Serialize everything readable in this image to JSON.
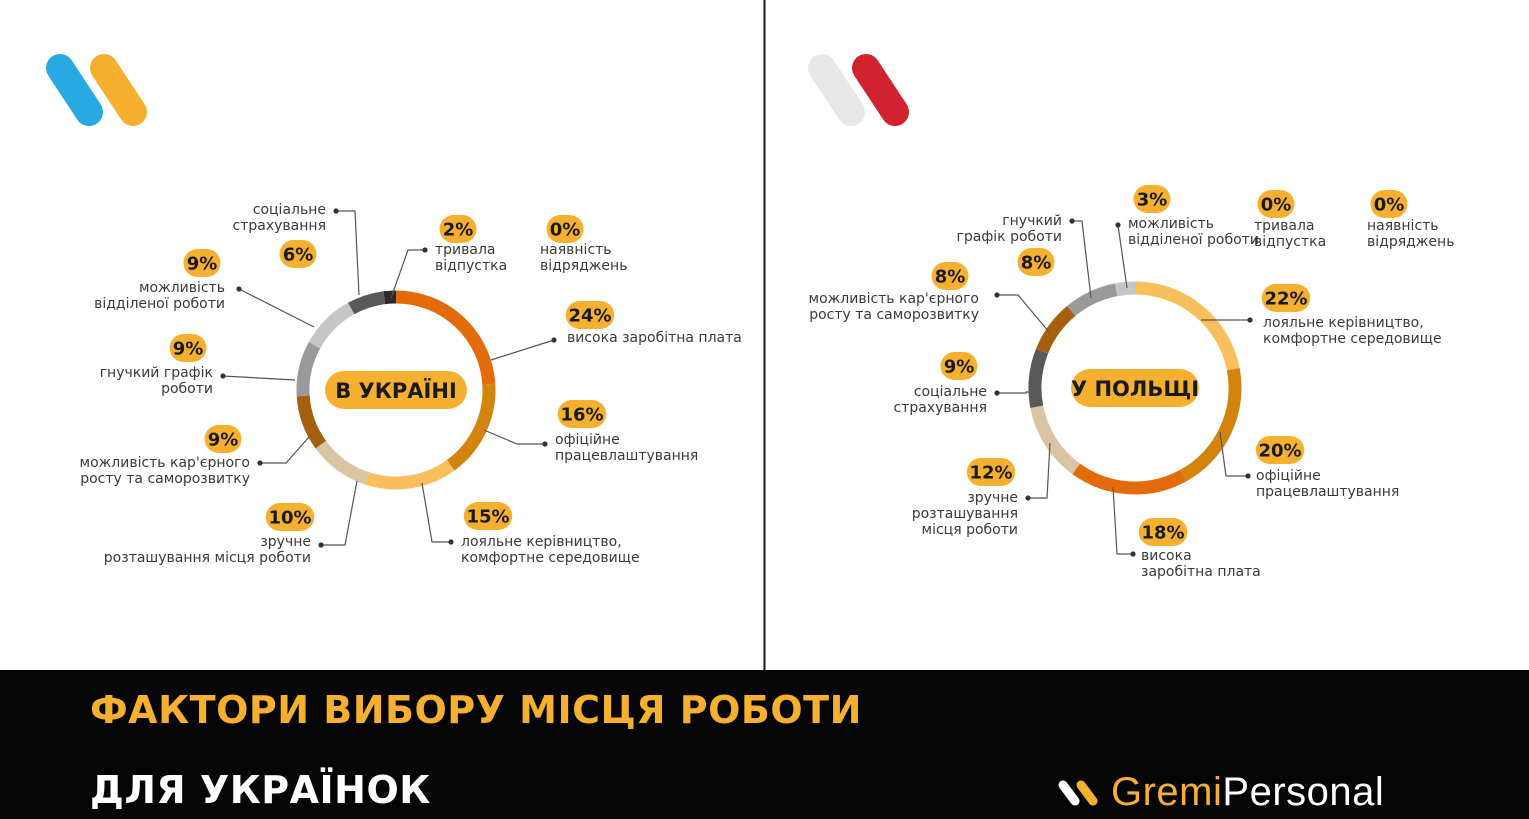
{
  "colors": {
    "accent_yellow": "#f6b030",
    "logo_blue": "#28a9e2",
    "logo_grey": "#e8e8e8",
    "logo_red": "#d0232f",
    "footer_bg": "#050505"
  },
  "chart_data": [
    {
      "type": "pie",
      "center_label": "В УКРАЇНІ",
      "slices": [
        {
          "label": "висока заробітна плата",
          "value": 24,
          "pct_text": "24%",
          "color": "#e36b0c"
        },
        {
          "label": "офіційне працевлаштування",
          "value": 16,
          "pct_text": "16%",
          "color": "#d2840f"
        },
        {
          "label": "лояльне керівництво, комфортне середовище",
          "value": 15,
          "pct_text": "15%",
          "color": "#f9bf5c"
        },
        {
          "label": "зручне розташування місця роботи",
          "value": 10,
          "pct_text": "10%",
          "color": "#d9c4a3"
        },
        {
          "label": "можливість кар'єрного росту та саморозвитку",
          "value": 9,
          "pct_text": "9%",
          "color": "#a5600f"
        },
        {
          "label": "гнучкий графік роботи",
          "value": 9,
          "pct_text": "9%",
          "color": "#9a9a9a"
        },
        {
          "label": "можливість відділеної роботи",
          "value": 9,
          "pct_text": "9%",
          "color": "#c6c6c4"
        },
        {
          "label": "соціальне страхування",
          "value": 6,
          "pct_text": "6%",
          "color": "#595959"
        },
        {
          "label": "тривала відпустка",
          "value": 2,
          "pct_text": "2%",
          "color": "#2b2b2b"
        },
        {
          "label": "наявність відряджень",
          "value": 0,
          "pct_text": "0%",
          "color": "#2b2b2b"
        }
      ]
    },
    {
      "type": "pie",
      "center_label": "У ПОЛЬЩІ",
      "slices": [
        {
          "label": "лояльне керівництво, комфортне середовище",
          "value": 22,
          "pct_text": "22%",
          "color": "#f9bf5c"
        },
        {
          "label": "офіційне працевлаштування",
          "value": 20,
          "pct_text": "20%",
          "color": "#d2840f"
        },
        {
          "label": "висока заробітна плата",
          "value": 18,
          "pct_text": "18%",
          "color": "#e36b0c"
        },
        {
          "label": "зручне розташування місця роботи",
          "value": 12,
          "pct_text": "12%",
          "color": "#d9c4a3"
        },
        {
          "label": "соціальне страхування",
          "value": 9,
          "pct_text": "9%",
          "color": "#595959"
        },
        {
          "label": "можливість кар'єрного росту та саморозвитку",
          "value": 8,
          "pct_text": "8%",
          "color": "#a5600f"
        },
        {
          "label": "гнучкий графік роботи",
          "value": 8,
          "pct_text": "8%",
          "color": "#9a9a9a"
        },
        {
          "label": "можливість відділеної роботи",
          "value": 3,
          "pct_text": "3%",
          "color": "#c6c6c4"
        },
        {
          "label": "тривала відпустка",
          "value": 0,
          "pct_text": "0%",
          "color": "#2b2b2b"
        },
        {
          "label": "наявність відряджень",
          "value": 0,
          "pct_text": "0%",
          "color": "#2b2b2b"
        }
      ]
    }
  ],
  "footer": {
    "title_line1": "ФАКТОРИ ВИБОРУ МІСЦЯ РОБОТИ",
    "title_line2": "ДЛЯ УКРАЇНОК",
    "brand_part1": "Gremi",
    "brand_part2": "Personal"
  }
}
